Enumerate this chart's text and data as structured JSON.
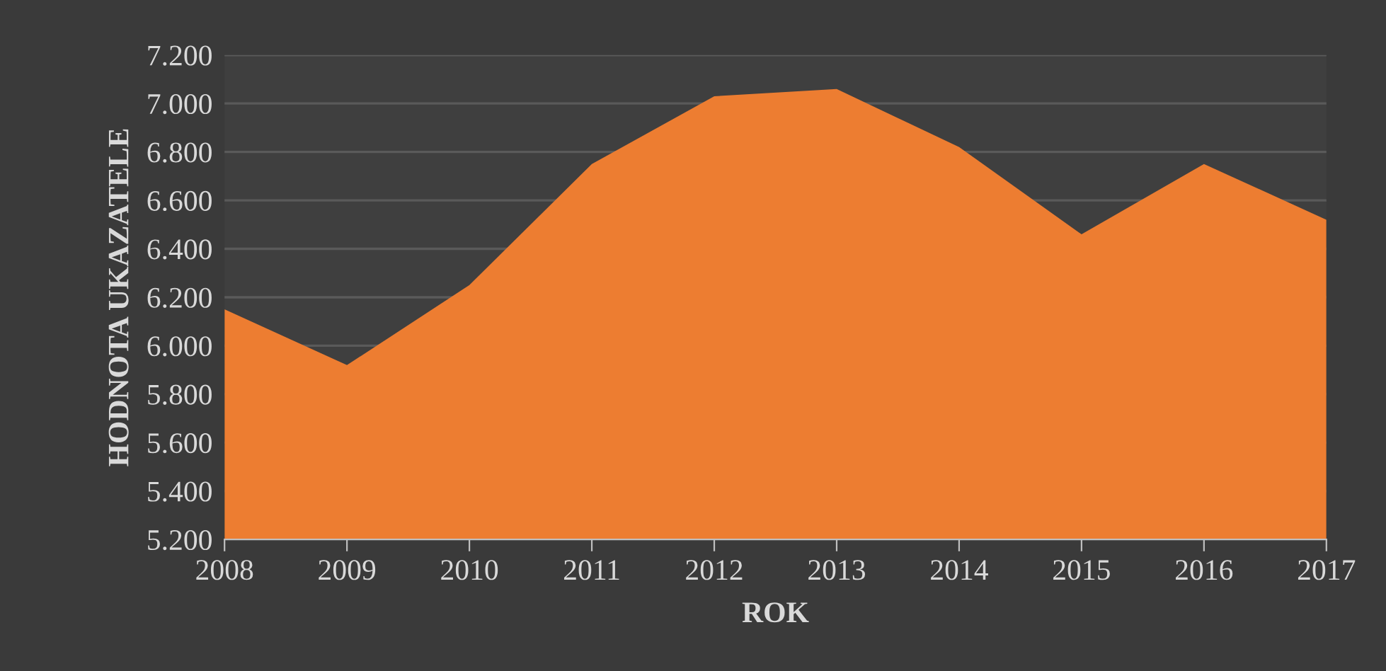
{
  "chart_data": {
    "type": "area",
    "xlabel": "ROK",
    "ylabel": "HODNOTA UKAZATELE",
    "categories": [
      "2008",
      "2009",
      "2010",
      "2011",
      "2012",
      "2013",
      "2014",
      "2015",
      "2016",
      "2017"
    ],
    "series": [
      {
        "color": "#ed7d31",
        "values": [
          6150,
          5920,
          6250,
          6750,
          7030,
          7060,
          6820,
          6460,
          6750,
          6520
        ]
      }
    ],
    "ylim": [
      5200,
      7200
    ],
    "yticks": [
      {
        "value": 5200,
        "label": "5.200"
      },
      {
        "value": 5400,
        "label": "5.400"
      },
      {
        "value": 5600,
        "label": "5.600"
      },
      {
        "value": 5800,
        "label": "5.800"
      },
      {
        "value": 6000,
        "label": "6.000"
      },
      {
        "value": 6200,
        "label": "6.200"
      },
      {
        "value": 6400,
        "label": "6.400"
      },
      {
        "value": 6600,
        "label": "6.600"
      },
      {
        "value": 6800,
        "label": "6.800"
      },
      {
        "value": 7000,
        "label": "7.000"
      },
      {
        "value": 7200,
        "label": "7.200"
      }
    ],
    "grid": "y",
    "legend": false
  }
}
